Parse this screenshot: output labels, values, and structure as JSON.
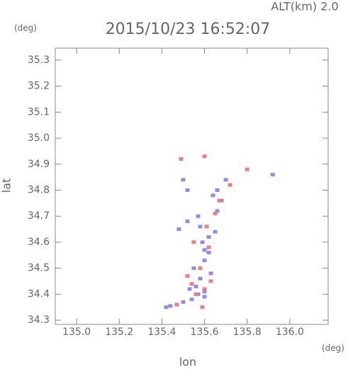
{
  "chart_data": {
    "type": "scatter",
    "title": "2015/10/23 16:52:07",
    "subtitle": "ALT(km) 2.0",
    "y_unit": "(deg)",
    "x_unit": "(deg)",
    "xlabel": "lon",
    "ylabel": "lat",
    "xlim": [
      134.9,
      136.18
    ],
    "ylim": [
      34.284,
      35.346
    ],
    "xticks": [
      {
        "value": 135,
        "label": "135.0"
      },
      135.2,
      135.4,
      135.6,
      135.8,
      {
        "value": 136,
        "label": "136.0"
      }
    ],
    "yticks": [
      34.3,
      34.4,
      34.5,
      34.6,
      34.7,
      34.8,
      34.9,
      {
        "value": 35,
        "label": "35.0"
      },
      35.1,
      35.2,
      35.3
    ],
    "series": [
      {
        "color": "#8c8cf0",
        "x": [
          135.58,
          135.62,
          135.55,
          135.6,
          135.65,
          135.57,
          135.52,
          135.6,
          135.63,
          135.55,
          135.58,
          135.53,
          135.6,
          135.57,
          135.54,
          135.6,
          135.5,
          135.47,
          135.44,
          135.42,
          135.66,
          135.7,
          135.64,
          135.68,
          135.5,
          135.52,
          135.92,
          135.62,
          135.48,
          135.56,
          135.66,
          135.59
        ],
        "y": [
          34.66,
          34.62,
          34.6,
          34.57,
          34.64,
          34.7,
          34.68,
          34.53,
          34.48,
          34.5,
          34.46,
          34.42,
          34.41,
          34.4,
          34.38,
          34.39,
          34.37,
          34.36,
          34.355,
          34.35,
          34.8,
          34.84,
          34.78,
          34.76,
          34.84,
          34.8,
          34.86,
          34.56,
          34.65,
          34.43,
          34.72,
          34.6
        ]
      },
      {
        "color": "#f07c7c",
        "x": [
          135.49,
          135.6,
          135.72,
          135.8,
          135.67,
          135.61,
          135.55,
          135.58,
          135.63,
          135.56,
          135.6,
          135.54,
          135.47,
          135.52,
          135.65,
          135.59,
          135.62
        ],
        "y": [
          34.92,
          34.93,
          34.82,
          34.88,
          34.76,
          34.66,
          34.6,
          34.5,
          34.45,
          34.4,
          34.42,
          34.44,
          34.36,
          34.47,
          34.71,
          34.35,
          34.58
        ]
      }
    ]
  }
}
